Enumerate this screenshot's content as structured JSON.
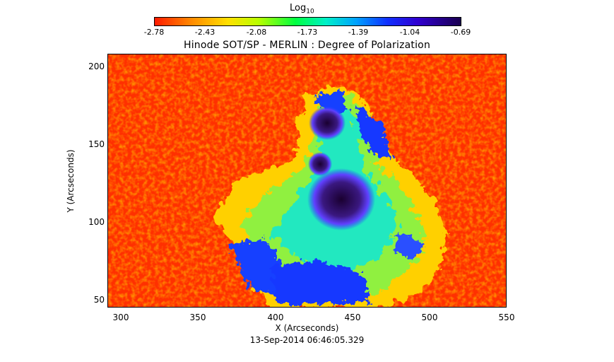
{
  "colorbar": {
    "title_base": "Log",
    "title_sub": "10",
    "ticks": [
      "-2.78",
      "-2.43",
      "-2.08",
      "-1.73",
      "-1.39",
      "-1.04",
      "-0.69"
    ]
  },
  "plot": {
    "title": "Hinode SOT/SP - MERLIN : Degree of Polarization",
    "xlabel": "X (Arcseconds)",
    "ylabel": "Y (Arcseconds)",
    "xticks": [
      "300",
      "350",
      "400",
      "450",
      "500",
      "550"
    ],
    "yticks": [
      "200",
      "150",
      "100",
      "50"
    ],
    "timestamp": "13-Sep-2014 06:46:05.329"
  }
}
